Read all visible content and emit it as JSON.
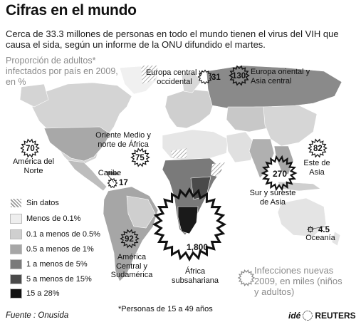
{
  "title": "Cifras en el mundo",
  "intro": "Cerca de 33.3 millones de personas en todo el mundo tienen el virus del VIH que causa el sida, según un informe de la ONU difundido el martes.",
  "map_subtitle": "Proporción de adultos* infectados por país en 2009, en %",
  "legend": {
    "items": [
      {
        "label": "Sin datos",
        "fill": "hatch"
      },
      {
        "label": "Menos de 0.1%",
        "fill": "#eeeeee"
      },
      {
        "label": "0.1 a menos de 0.5%",
        "fill": "#cfcfcf"
      },
      {
        "label": "0.5 a menos de 1%",
        "fill": "#a6a6a6"
      },
      {
        "label": "1 a menos de 5%",
        "fill": "#7a7a7a"
      },
      {
        "label": "5 a menos de 15%",
        "fill": "#4a4a4a"
      },
      {
        "label": "15 a 28%",
        "fill": "#111111"
      }
    ]
  },
  "regions": [
    {
      "name": "América del Norte",
      "value": "70"
    },
    {
      "name": "Caribe",
      "value": "17"
    },
    {
      "name": "América Central y Sudamérica",
      "value": "92"
    },
    {
      "name": "Europa central y occidental",
      "value": "31"
    },
    {
      "name": "Europa oriental y Asia central",
      "value": "130"
    },
    {
      "name": "Oriente Medio y norte de África",
      "value": "75"
    },
    {
      "name": "África subsahariana",
      "value": "1,800"
    },
    {
      "name": "Este de Asia",
      "value": "82"
    },
    {
      "name": "Sur y sureste de Asia",
      "value": "270"
    },
    {
      "name": "Oceanía",
      "value": "4.5"
    }
  ],
  "infections_label": "Infecciones nuevas 2009, en miles (niños y adultos)",
  "footnote": "*Personas de 15 a 49 años",
  "source": "Fuente : Onusida",
  "brand": {
    "ide": "idé",
    "reuters": "REUTERS"
  },
  "colors": {
    "ocean": "#ffffff",
    "sun_stroke": "#111111",
    "title_gray": "#8a8a8a"
  }
}
